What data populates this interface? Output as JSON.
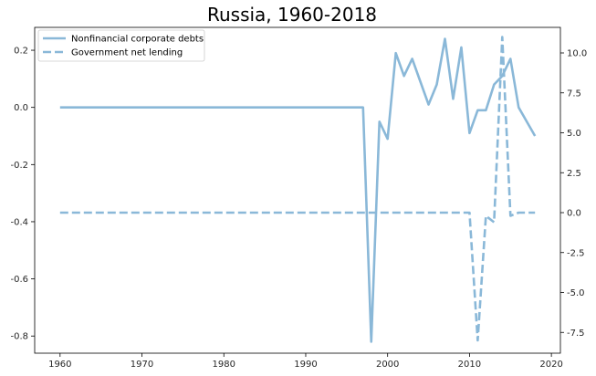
{
  "chart_data": {
    "type": "line",
    "title": "Russia, 1960-2018",
    "xlabel": "",
    "ylabel_left": "",
    "ylabel_right": "",
    "xlim": [
      1956.9,
      2021.1
    ],
    "ylim_left": [
      -0.86,
      0.28
    ],
    "ylim_right": [
      -8.8,
      11.6
    ],
    "x_ticks": [
      1960,
      1970,
      1980,
      1990,
      2000,
      2010,
      2020
    ],
    "y_left_ticks": [
      -0.8,
      -0.6,
      -0.4,
      -0.2,
      0.0,
      0.2
    ],
    "y_right_ticks": [
      -7.5,
      -5.0,
      -2.5,
      0.0,
      2.5,
      5.0,
      7.5,
      10.0
    ],
    "grid": false,
    "legend_position": "top-left",
    "color": "#8ab8d8",
    "series": [
      {
        "name": "Nonfinancial corporate debts",
        "axis": "left",
        "style": "solid",
        "x": [
          1960,
          1961,
          1962,
          1963,
          1964,
          1965,
          1966,
          1967,
          1968,
          1969,
          1970,
          1971,
          1972,
          1973,
          1974,
          1975,
          1976,
          1977,
          1978,
          1979,
          1980,
          1981,
          1982,
          1983,
          1984,
          1985,
          1986,
          1987,
          1988,
          1989,
          1990,
          1991,
          1992,
          1993,
          1994,
          1995,
          1996,
          1997,
          1998,
          1999,
          2000,
          2001,
          2002,
          2003,
          2004,
          2005,
          2006,
          2007,
          2008,
          2009,
          2010,
          2011,
          2012,
          2013,
          2014,
          2015,
          2016,
          2017,
          2018
        ],
        "values": [
          0,
          0,
          0,
          0,
          0,
          0,
          0,
          0,
          0,
          0,
          0,
          0,
          0,
          0,
          0,
          0,
          0,
          0,
          0,
          0,
          0,
          0,
          0,
          0,
          0,
          0,
          0,
          0,
          0,
          0,
          0,
          0,
          0,
          0,
          0,
          0,
          0,
          0,
          -0.82,
          -0.05,
          -0.11,
          0.19,
          0.11,
          0.17,
          0.09,
          0.01,
          0.08,
          0.24,
          0.03,
          0.21,
          -0.09,
          -0.01,
          -0.01,
          0.08,
          0.11,
          0.17,
          0.0,
          -0.05,
          -0.1
        ]
      },
      {
        "name": "Government net lending",
        "axis": "right",
        "style": "dashed",
        "x": [
          1960,
          1961,
          1962,
          1963,
          1964,
          1965,
          1966,
          1967,
          1968,
          1969,
          1970,
          1971,
          1972,
          1973,
          1974,
          1975,
          1976,
          1977,
          1978,
          1979,
          1980,
          1981,
          1982,
          1983,
          1984,
          1985,
          1986,
          1987,
          1988,
          1989,
          1990,
          1991,
          1992,
          1993,
          1994,
          1995,
          1996,
          1997,
          1998,
          1999,
          2000,
          2001,
          2002,
          2003,
          2004,
          2005,
          2006,
          2007,
          2008,
          2009,
          2010,
          2011,
          2012,
          2013,
          2014,
          2015,
          2016,
          2017,
          2018
        ],
        "values": [
          0,
          0,
          0,
          0,
          0,
          0,
          0,
          0,
          0,
          0,
          0,
          0,
          0,
          0,
          0,
          0,
          0,
          0,
          0,
          0,
          0,
          0,
          0,
          0,
          0,
          0,
          0,
          0,
          0,
          0,
          0,
          0,
          0,
          0,
          0,
          0,
          0,
          0,
          0,
          0,
          0,
          0,
          0,
          0,
          0,
          0,
          0,
          0,
          0,
          0,
          0,
          -8.0,
          -0.2,
          -0.6,
          11.0,
          -0.2,
          0,
          0,
          0
        ]
      }
    ]
  }
}
